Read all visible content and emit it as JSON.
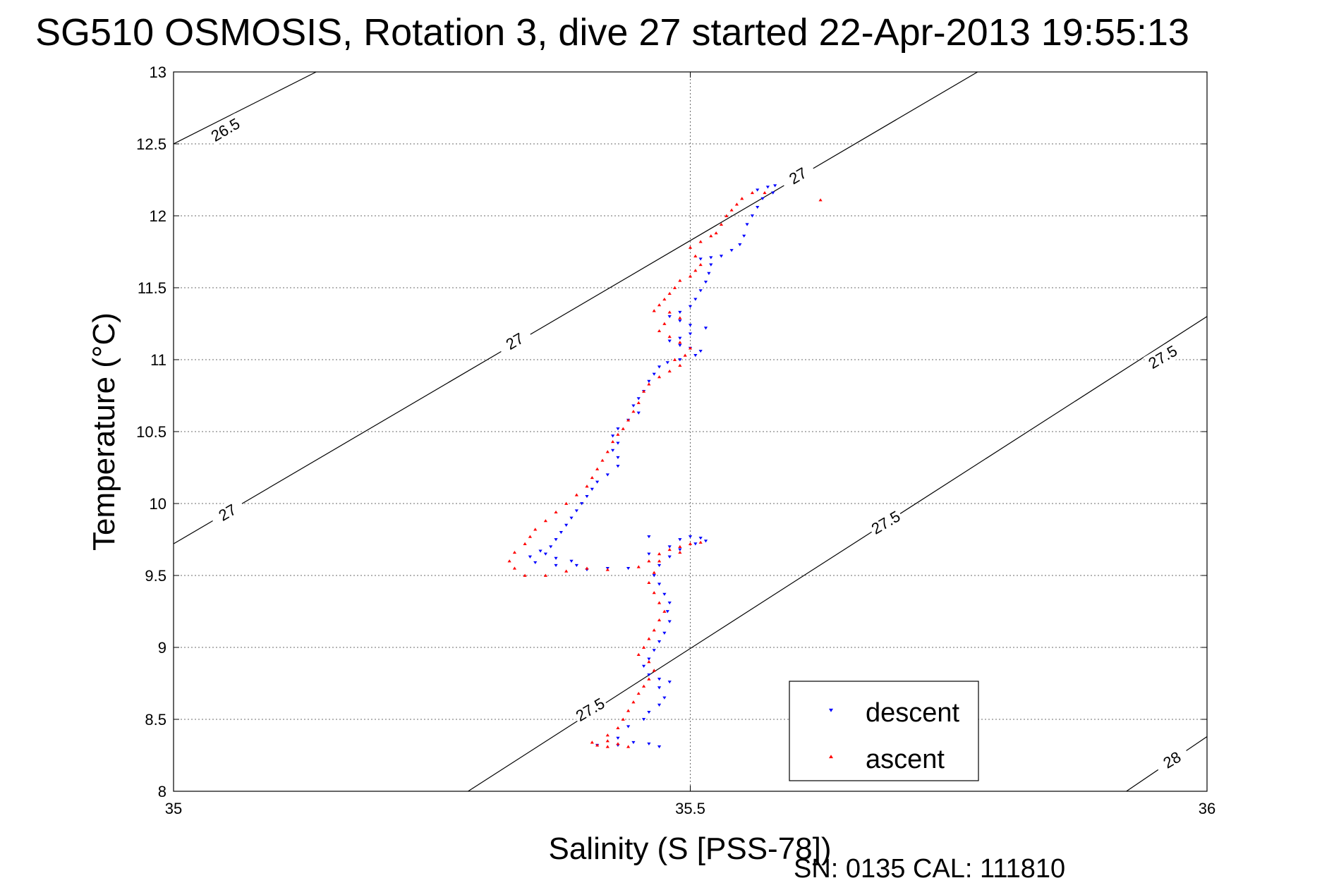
{
  "chart_data": {
    "type": "scatter",
    "title": "SG510 OSMOSIS, Rotation 3, dive 27 started 22-Apr-2013 19:55:13",
    "xlabel": "Salinity (S [PSS-78])",
    "ylabel": "Temperature (°C)",
    "xlim": [
      35,
      36
    ],
    "ylim": [
      8,
      13
    ],
    "xticks": [
      "35",
      "35.5",
      "36"
    ],
    "yticks": [
      "8",
      "8.5",
      "9",
      "9.5",
      "10",
      "10.5",
      "11",
      "11.5",
      "12",
      "12.5",
      "13"
    ],
    "grid": true,
    "legend_position": "bottom-right",
    "footer": "SN: 0135  CAL: 111810",
    "density_contours": [
      {
        "label": "26.5",
        "points": [
          [
            35.0,
            12.5
          ],
          [
            35.138,
            13.0
          ]
        ],
        "label_at": [
          35.05,
          12.6
        ]
      },
      {
        "label": "27",
        "points": [
          [
            35.0,
            9.72
          ],
          [
            35.778,
            13.0
          ]
        ],
        "label_at": [
          35.052,
          9.94
        ]
      },
      {
        "label": "27",
        "points": [],
        "label_at": [
          35.33,
          11.13
        ]
      },
      {
        "label": "27",
        "points": [],
        "label_at": [
          35.604,
          12.28
        ]
      },
      {
        "label": "27.5",
        "points": [
          [
            35.285,
            8.0
          ],
          [
            36.0,
            11.3
          ]
        ],
        "label_at": [
          35.403,
          8.57
        ]
      },
      {
        "label": "27.5",
        "points": [],
        "label_at": [
          35.689,
          9.87
        ]
      },
      {
        "label": "27.5",
        "points": [],
        "label_at": [
          35.957,
          11.02
        ]
      },
      {
        "label": "28",
        "points": [
          [
            35.922,
            8.0
          ],
          [
            36.0,
            8.38
          ]
        ],
        "label_at": [
          35.966,
          8.22
        ]
      }
    ],
    "series": [
      {
        "name": "descent",
        "color": "#0000ff",
        "marker": "triangle-down",
        "points": [
          [
            35.582,
            12.21
          ],
          [
            35.575,
            12.2
          ],
          [
            35.565,
            12.18
          ],
          [
            35.58,
            12.16
          ],
          [
            35.57,
            12.12
          ],
          [
            35.565,
            12.06
          ],
          [
            35.56,
            12.0
          ],
          [
            35.555,
            11.94
          ],
          [
            35.552,
            11.86
          ],
          [
            35.548,
            11.8
          ],
          [
            35.54,
            11.76
          ],
          [
            35.53,
            11.72
          ],
          [
            35.52,
            11.71
          ],
          [
            35.51,
            11.7
          ],
          [
            35.52,
            11.66
          ],
          [
            35.518,
            11.6
          ],
          [
            35.515,
            11.54
          ],
          [
            35.51,
            11.48
          ],
          [
            35.505,
            11.42
          ],
          [
            35.5,
            11.37
          ],
          [
            35.49,
            11.33
          ],
          [
            35.48,
            11.3
          ],
          [
            35.49,
            11.27
          ],
          [
            35.5,
            11.24
          ],
          [
            35.515,
            11.22
          ],
          [
            35.5,
            11.18
          ],
          [
            35.49,
            11.15
          ],
          [
            35.48,
            11.13
          ],
          [
            35.49,
            11.1
          ],
          [
            35.5,
            11.08
          ],
          [
            35.51,
            11.06
          ],
          [
            35.505,
            11.03
          ],
          [
            35.49,
            11.0
          ],
          [
            35.478,
            10.98
          ],
          [
            35.47,
            10.95
          ],
          [
            35.465,
            10.9
          ],
          [
            35.46,
            10.85
          ],
          [
            35.455,
            10.78
          ],
          [
            35.45,
            10.73
          ],
          [
            35.445,
            10.68
          ],
          [
            35.45,
            10.63
          ],
          [
            35.44,
            10.58
          ],
          [
            35.43,
            10.52
          ],
          [
            35.425,
            10.47
          ],
          [
            35.43,
            10.42
          ],
          [
            35.425,
            10.37
          ],
          [
            35.43,
            10.32
          ],
          [
            35.43,
            10.26
          ],
          [
            35.42,
            10.2
          ],
          [
            35.41,
            10.15
          ],
          [
            35.405,
            10.1
          ],
          [
            35.4,
            10.05
          ],
          [
            35.395,
            10.0
          ],
          [
            35.39,
            9.95
          ],
          [
            35.385,
            9.9
          ],
          [
            35.38,
            9.85
          ],
          [
            35.375,
            9.8
          ],
          [
            35.37,
            9.75
          ],
          [
            35.365,
            9.7
          ],
          [
            35.36,
            9.65
          ],
          [
            35.37,
            9.62
          ],
          [
            35.385,
            9.6
          ],
          [
            35.39,
            9.57
          ],
          [
            35.37,
            9.57
          ],
          [
            35.35,
            9.59
          ],
          [
            35.345,
            9.63
          ],
          [
            35.355,
            9.67
          ],
          [
            35.4,
            9.54
          ],
          [
            35.42,
            9.55
          ],
          [
            35.44,
            9.55
          ],
          [
            35.46,
            9.65
          ],
          [
            35.48,
            9.7
          ],
          [
            35.49,
            9.75
          ],
          [
            35.5,
            9.77
          ],
          [
            35.51,
            9.76
          ],
          [
            35.515,
            9.74
          ],
          [
            35.505,
            9.72
          ],
          [
            35.49,
            9.68
          ],
          [
            35.48,
            9.63
          ],
          [
            35.47,
            9.57
          ],
          [
            35.465,
            9.5
          ],
          [
            35.47,
            9.44
          ],
          [
            35.475,
            9.37
          ],
          [
            35.48,
            9.31
          ],
          [
            35.478,
            9.25
          ],
          [
            35.48,
            9.18
          ],
          [
            35.475,
            9.1
          ],
          [
            35.47,
            9.04
          ],
          [
            35.465,
            8.98
          ],
          [
            35.46,
            8.92
          ],
          [
            35.455,
            8.87
          ],
          [
            35.46,
            8.81
          ],
          [
            35.47,
            8.78
          ],
          [
            35.48,
            8.76
          ],
          [
            35.47,
            8.72
          ],
          [
            35.475,
            8.65
          ],
          [
            35.47,
            8.6
          ],
          [
            35.46,
            8.55
          ],
          [
            35.455,
            8.5
          ],
          [
            35.44,
            8.45
          ],
          [
            35.43,
            8.37
          ],
          [
            35.445,
            8.34
          ],
          [
            35.46,
            8.33
          ],
          [
            35.47,
            8.31
          ],
          [
            35.43,
            8.32
          ],
          [
            35.41,
            8.32
          ],
          [
            35.46,
            9.77
          ]
        ]
      },
      {
        "name": "ascent",
        "color": "#ff0000",
        "marker": "triangle-up",
        "points": [
          [
            35.626,
            12.11
          ],
          [
            35.572,
            12.16
          ],
          [
            35.56,
            12.16
          ],
          [
            35.55,
            12.12
          ],
          [
            35.545,
            12.08
          ],
          [
            35.54,
            12.04
          ],
          [
            35.535,
            12.0
          ],
          [
            35.53,
            11.94
          ],
          [
            35.525,
            11.88
          ],
          [
            35.52,
            11.86
          ],
          [
            35.51,
            11.82
          ],
          [
            35.5,
            11.78
          ],
          [
            35.505,
            11.72
          ],
          [
            35.51,
            11.66
          ],
          [
            35.505,
            11.62
          ],
          [
            35.5,
            11.58
          ],
          [
            35.49,
            11.55
          ],
          [
            35.485,
            11.5
          ],
          [
            35.48,
            11.46
          ],
          [
            35.475,
            11.42
          ],
          [
            35.47,
            11.38
          ],
          [
            35.465,
            11.34
          ],
          [
            35.48,
            11.33
          ],
          [
            35.49,
            11.29
          ],
          [
            35.475,
            11.25
          ],
          [
            35.47,
            11.2
          ],
          [
            35.48,
            11.16
          ],
          [
            35.49,
            11.12
          ],
          [
            35.5,
            11.08
          ],
          [
            35.495,
            11.03
          ],
          [
            35.485,
            11.0
          ],
          [
            35.49,
            10.96
          ],
          [
            35.48,
            10.92
          ],
          [
            35.47,
            10.88
          ],
          [
            35.46,
            10.83
          ],
          [
            35.455,
            10.78
          ],
          [
            35.45,
            10.7
          ],
          [
            35.445,
            10.64
          ],
          [
            35.44,
            10.58
          ],
          [
            35.435,
            10.52
          ],
          [
            35.43,
            10.48
          ],
          [
            35.425,
            10.43
          ],
          [
            35.42,
            10.36
          ],
          [
            35.415,
            10.3
          ],
          [
            35.41,
            10.24
          ],
          [
            35.405,
            10.18
          ],
          [
            35.4,
            10.12
          ],
          [
            35.39,
            10.06
          ],
          [
            35.38,
            10.0
          ],
          [
            35.37,
            9.94
          ],
          [
            35.36,
            9.88
          ],
          [
            35.35,
            9.82
          ],
          [
            35.345,
            9.77
          ],
          [
            35.34,
            9.72
          ],
          [
            35.33,
            9.66
          ],
          [
            35.325,
            9.6
          ],
          [
            35.33,
            9.55
          ],
          [
            35.34,
            9.5
          ],
          [
            35.36,
            9.5
          ],
          [
            35.38,
            9.53
          ],
          [
            35.4,
            9.55
          ],
          [
            35.42,
            9.54
          ],
          [
            35.45,
            9.56
          ],
          [
            35.46,
            9.6
          ],
          [
            35.47,
            9.65
          ],
          [
            35.48,
            9.68
          ],
          [
            35.49,
            9.7
          ],
          [
            35.5,
            9.72
          ],
          [
            35.51,
            9.73
          ],
          [
            35.49,
            9.66
          ],
          [
            35.47,
            9.6
          ],
          [
            35.465,
            9.52
          ],
          [
            35.46,
            9.45
          ],
          [
            35.465,
            9.38
          ],
          [
            35.47,
            9.31
          ],
          [
            35.475,
            9.25
          ],
          [
            35.47,
            9.19
          ],
          [
            35.465,
            9.12
          ],
          [
            35.46,
            9.06
          ],
          [
            35.455,
            9.0
          ],
          [
            35.45,
            8.95
          ],
          [
            35.46,
            8.9
          ],
          [
            35.465,
            8.84
          ],
          [
            35.46,
            8.78
          ],
          [
            35.455,
            8.73
          ],
          [
            35.45,
            8.68
          ],
          [
            35.445,
            8.62
          ],
          [
            35.44,
            8.56
          ],
          [
            35.435,
            8.5
          ],
          [
            35.43,
            8.44
          ],
          [
            35.42,
            8.39
          ],
          [
            35.42,
            8.35
          ],
          [
            35.43,
            8.33
          ],
          [
            35.44,
            8.31
          ],
          [
            35.42,
            8.31
          ],
          [
            35.41,
            8.32
          ],
          [
            35.405,
            8.34
          ]
        ]
      }
    ]
  }
}
